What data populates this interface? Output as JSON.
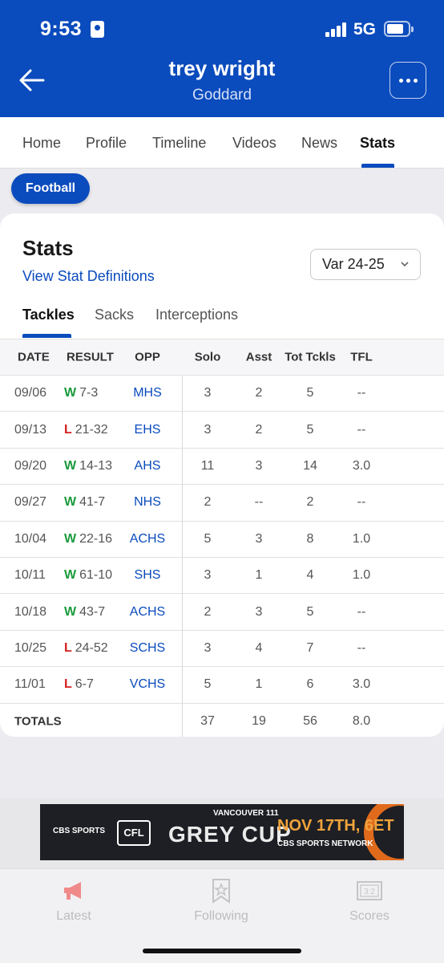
{
  "status_bar": {
    "time": "9:53",
    "network": "5G"
  },
  "header": {
    "name": "trey wright",
    "school": "Goddard"
  },
  "tabs": [
    "Home",
    "Profile",
    "Timeline",
    "Videos",
    "News",
    "Stats"
  ],
  "active_tab": "Stats",
  "sport": "Football",
  "card": {
    "title": "Stats",
    "definitions_link": "View Stat Definitions",
    "season": "Var 24-25",
    "subtabs": [
      "Tackles",
      "Sacks",
      "Interceptions"
    ]
  },
  "table": {
    "columns": [
      "DATE",
      "RESULT",
      "OPP",
      "Solo",
      "Asst",
      "Tot Tckls",
      "TFL"
    ],
    "rows": [
      {
        "date": "09/06",
        "wl": "W",
        "score": "7-3",
        "opp": "MHS",
        "solo": "3",
        "asst": "2",
        "tot": "5",
        "tfl": "--"
      },
      {
        "date": "09/13",
        "wl": "L",
        "score": "21-32",
        "opp": "EHS",
        "solo": "3",
        "asst": "2",
        "tot": "5",
        "tfl": "--"
      },
      {
        "date": "09/20",
        "wl": "W",
        "score": "14-13",
        "opp": "AHS",
        "solo": "11",
        "asst": "3",
        "tot": "14",
        "tfl": "3.0"
      },
      {
        "date": "09/27",
        "wl": "W",
        "score": "41-7",
        "opp": "NHS",
        "solo": "2",
        "asst": "--",
        "tot": "2",
        "tfl": "--"
      },
      {
        "date": "10/04",
        "wl": "W",
        "score": "22-16",
        "opp": "ACHS",
        "solo": "5",
        "asst": "3",
        "tot": "8",
        "tfl": "1.0"
      },
      {
        "date": "10/11",
        "wl": "W",
        "score": "61-10",
        "opp": "SHS",
        "solo": "3",
        "asst": "1",
        "tot": "4",
        "tfl": "1.0"
      },
      {
        "date": "10/18",
        "wl": "W",
        "score": "43-7",
        "opp": "ACHS",
        "solo": "2",
        "asst": "3",
        "tot": "5",
        "tfl": "--"
      },
      {
        "date": "10/25",
        "wl": "L",
        "score": "24-52",
        "opp": "SCHS",
        "solo": "3",
        "asst": "4",
        "tot": "7",
        "tfl": "--"
      },
      {
        "date": "11/01",
        "wl": "L",
        "score": "6-7",
        "opp": "VCHS",
        "solo": "5",
        "asst": "1",
        "tot": "6",
        "tfl": "3.0"
      }
    ],
    "totals": {
      "label": "TOTALS",
      "solo": "37",
      "asst": "19",
      "tot": "56",
      "tfl": "8.0"
    }
  },
  "ad": {
    "cbs": "CBS SPORTS",
    "cfl": "CFL",
    "sub": "VANCOUVER 111",
    "title": "GREY CUP",
    "date": "NOV 17TH, 6ET",
    "network": "CBS SPORTS NETWORK"
  },
  "bottom_nav": [
    {
      "label": "Latest",
      "icon": "megaphone-icon"
    },
    {
      "label": "Following",
      "icon": "bookmark-star-icon"
    },
    {
      "label": "Scores",
      "icon": "scoreboard-icon"
    }
  ],
  "colors": {
    "brand": "#0a4bbd",
    "win": "#1a9a3c",
    "loss": "#d62020",
    "latest_icon": "#f08a8a"
  }
}
